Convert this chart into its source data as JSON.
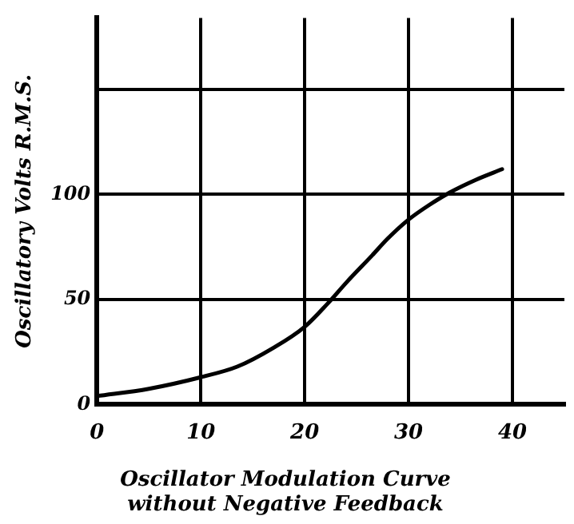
{
  "chart_data": {
    "type": "line",
    "title": "Oscillator Modulation Curve\nwithout Negative Feedback",
    "ylabel": "Oscillatory Volts R.M.S.",
    "x": [
      0,
      5,
      10,
      13.5,
      17,
      20,
      22.2,
      24,
      26.5,
      28,
      30,
      32,
      34,
      36.5,
      39
    ],
    "series": [
      {
        "color": "#000000",
        "values": [
          4,
          7.5,
          13,
          18,
          27,
          37,
          48,
          58,
          71,
          79,
          88,
          95,
          101,
          107,
          112
        ]
      }
    ],
    "xlim": [
      0,
      45
    ],
    "xticks": [
      0,
      10,
      20,
      30,
      40
    ],
    "ylim": [
      0,
      184
    ],
    "yticks": [
      0,
      50,
      100,
      {
        "value": 150,
        "label": null
      }
    ],
    "grid": true,
    "legend": false,
    "marker": "none",
    "line_style": "solid"
  }
}
